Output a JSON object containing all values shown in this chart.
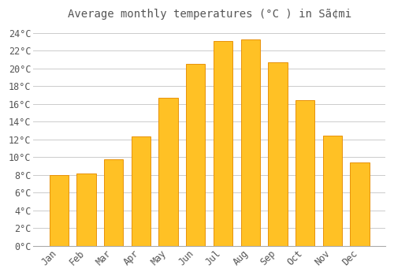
{
  "title": "Average monthly temperatures (°C ) in Sã¢mi",
  "months": [
    "Jan",
    "Feb",
    "Mar",
    "Apr",
    "May",
    "Jun",
    "Jul",
    "Aug",
    "Sep",
    "Oct",
    "Nov",
    "Dec"
  ],
  "values": [
    8.0,
    8.2,
    9.8,
    12.3,
    16.7,
    20.5,
    23.1,
    23.3,
    20.7,
    16.4,
    12.4,
    9.4
  ],
  "bar_color": "#FFC125",
  "bar_edge_color": "#E8920A",
  "background_color": "#FFFFFF",
  "plot_bg_color": "#FFFFFF",
  "grid_color": "#CCCCCC",
  "text_color": "#555555",
  "axis_color": "#AAAAAA",
  "ylim": [
    0,
    25
  ],
  "yticks": [
    0,
    2,
    4,
    6,
    8,
    10,
    12,
    14,
    16,
    18,
    20,
    22,
    24
  ],
  "title_fontsize": 10,
  "tick_fontsize": 8.5,
  "figsize": [
    5.0,
    3.5
  ],
  "dpi": 100
}
